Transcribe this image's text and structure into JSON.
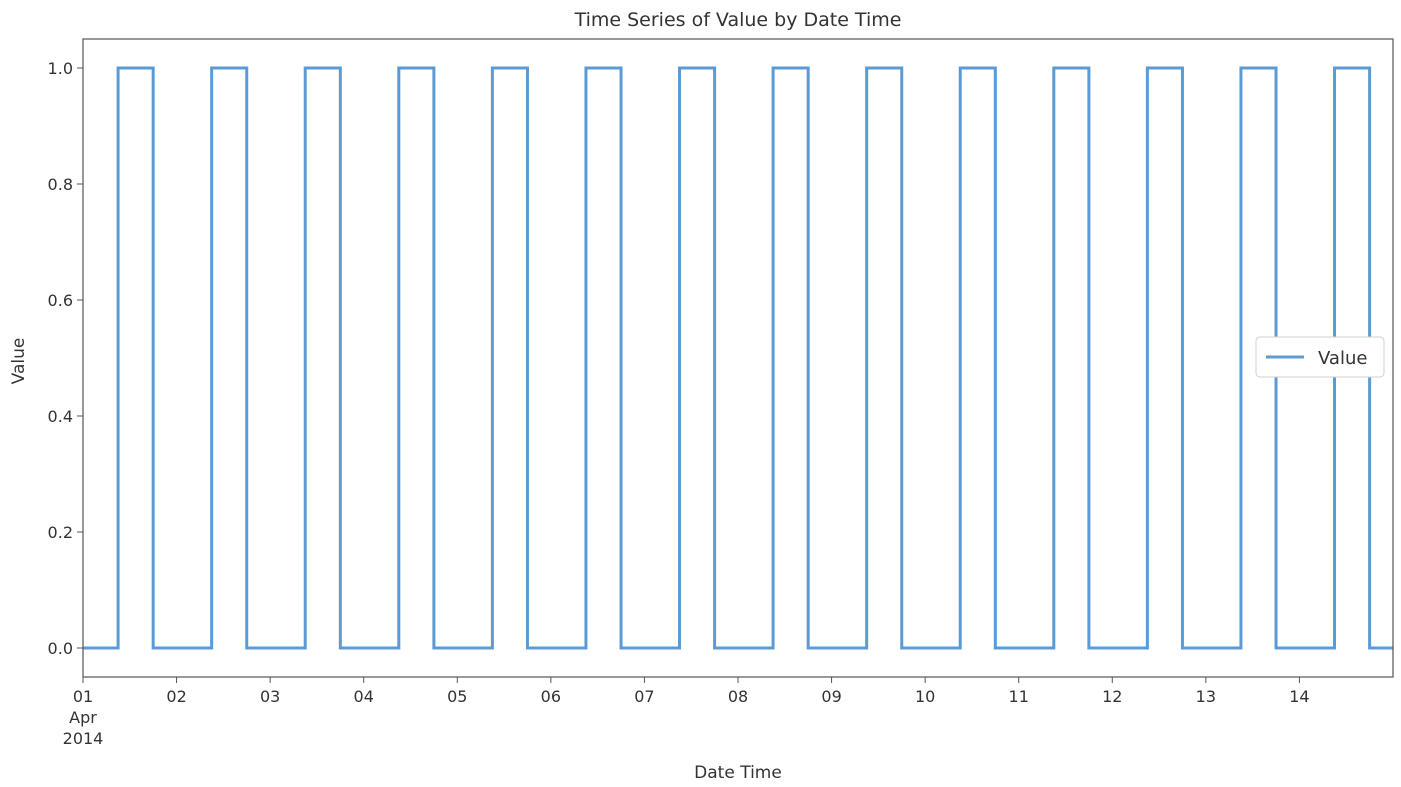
{
  "chart_data": {
    "type": "line",
    "title": "Time Series of Value by Date Time",
    "xlabel": "Date Time",
    "ylabel": "Value",
    "xlim": [
      "2014-04-01T00:00",
      "2014-04-15T00:00"
    ],
    "ylim": [
      -0.05,
      1.05
    ],
    "x_ticks": [
      {
        "value": "2014-04-01T00:00",
        "label": "01",
        "sublabel_1": "Apr",
        "sublabel_2": "2014"
      },
      {
        "value": "2014-04-02T00:00",
        "label": "02"
      },
      {
        "value": "2014-04-03T00:00",
        "label": "03"
      },
      {
        "value": "2014-04-04T00:00",
        "label": "04"
      },
      {
        "value": "2014-04-05T00:00",
        "label": "05"
      },
      {
        "value": "2014-04-06T00:00",
        "label": "06"
      },
      {
        "value": "2014-04-07T00:00",
        "label": "07"
      },
      {
        "value": "2014-04-08T00:00",
        "label": "08"
      },
      {
        "value": "2014-04-09T00:00",
        "label": "09"
      },
      {
        "value": "2014-04-10T00:00",
        "label": "10"
      },
      {
        "value": "2014-04-11T00:00",
        "label": "11"
      },
      {
        "value": "2014-04-12T00:00",
        "label": "12"
      },
      {
        "value": "2014-04-13T00:00",
        "label": "13"
      },
      {
        "value": "2014-04-14T00:00",
        "label": "14"
      }
    ],
    "y_ticks": [
      {
        "value": 0.0,
        "label": "0.0"
      },
      {
        "value": 0.2,
        "label": "0.2"
      },
      {
        "value": 0.4,
        "label": "0.4"
      },
      {
        "value": 0.6,
        "label": "0.6"
      },
      {
        "value": 0.8,
        "label": "0.8"
      },
      {
        "value": 1.0,
        "label": "1.0"
      }
    ],
    "grid": false,
    "legend": {
      "position": "center-right"
    },
    "series": [
      {
        "name": "Value",
        "color": "#5b9bd5",
        "step": "post",
        "points": [
          {
            "x": "2014-04-01T00:00",
            "y": 0
          },
          {
            "x": "2014-04-01T09:00",
            "y": 1
          },
          {
            "x": "2014-04-01T18:00",
            "y": 0
          },
          {
            "x": "2014-04-02T09:00",
            "y": 1
          },
          {
            "x": "2014-04-02T18:00",
            "y": 0
          },
          {
            "x": "2014-04-03T09:00",
            "y": 1
          },
          {
            "x": "2014-04-03T18:00",
            "y": 0
          },
          {
            "x": "2014-04-04T09:00",
            "y": 1
          },
          {
            "x": "2014-04-04T18:00",
            "y": 0
          },
          {
            "x": "2014-04-05T09:00",
            "y": 1
          },
          {
            "x": "2014-04-05T18:00",
            "y": 0
          },
          {
            "x": "2014-04-06T09:00",
            "y": 1
          },
          {
            "x": "2014-04-06T18:00",
            "y": 0
          },
          {
            "x": "2014-04-07T09:00",
            "y": 1
          },
          {
            "x": "2014-04-07T18:00",
            "y": 0
          },
          {
            "x": "2014-04-08T09:00",
            "y": 1
          },
          {
            "x": "2014-04-08T18:00",
            "y": 0
          },
          {
            "x": "2014-04-09T09:00",
            "y": 1
          },
          {
            "x": "2014-04-09T18:00",
            "y": 0
          },
          {
            "x": "2014-04-10T09:00",
            "y": 1
          },
          {
            "x": "2014-04-10T18:00",
            "y": 0
          },
          {
            "x": "2014-04-11T09:00",
            "y": 1
          },
          {
            "x": "2014-04-11T18:00",
            "y": 0
          },
          {
            "x": "2014-04-12T09:00",
            "y": 1
          },
          {
            "x": "2014-04-12T18:00",
            "y": 0
          },
          {
            "x": "2014-04-13T09:00",
            "y": 1
          },
          {
            "x": "2014-04-13T18:00",
            "y": 0
          },
          {
            "x": "2014-04-14T09:00",
            "y": 1
          },
          {
            "x": "2014-04-14T18:00",
            "y": 0
          },
          {
            "x": "2014-04-15T00:00",
            "y": 0
          }
        ]
      }
    ]
  }
}
